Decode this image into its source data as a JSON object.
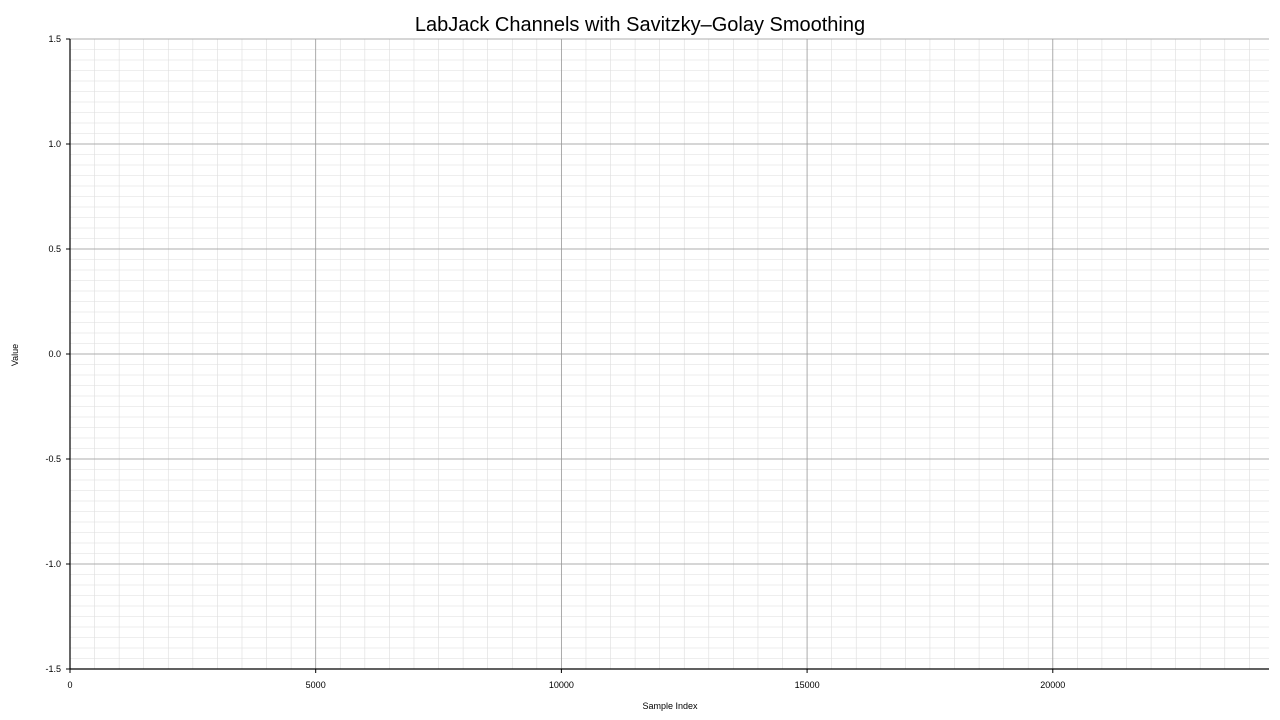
{
  "chart_data": {
    "type": "line",
    "title": "LabJack Channels with Savitzky–Golay Smoothing",
    "xlabel": "Sample Index",
    "ylabel": "Value",
    "xlim": [
      0,
      24400
    ],
    "ylim": [
      -1.5,
      1.5
    ],
    "x_ticks": [
      0,
      5000,
      10000,
      15000,
      20000
    ],
    "x_tick_labels": [
      "0",
      "5000",
      "10000",
      "15000",
      "20000"
    ],
    "y_ticks": [
      -1.5,
      -1.0,
      -0.5,
      0.0,
      0.5,
      1.0,
      1.5
    ],
    "y_tick_labels": [
      "-1.5",
      "-1.0",
      "-0.5",
      "0.0",
      "0.5",
      "1.0",
      "1.5"
    ],
    "x_minor_step": 500,
    "y_minor_step": 0.05,
    "grid": true,
    "minor_grid": true,
    "series": [],
    "colors": {
      "major_grid": "#999999",
      "minor_grid": "#dddddd",
      "axis": "#000000",
      "background": "#ffffff"
    }
  }
}
